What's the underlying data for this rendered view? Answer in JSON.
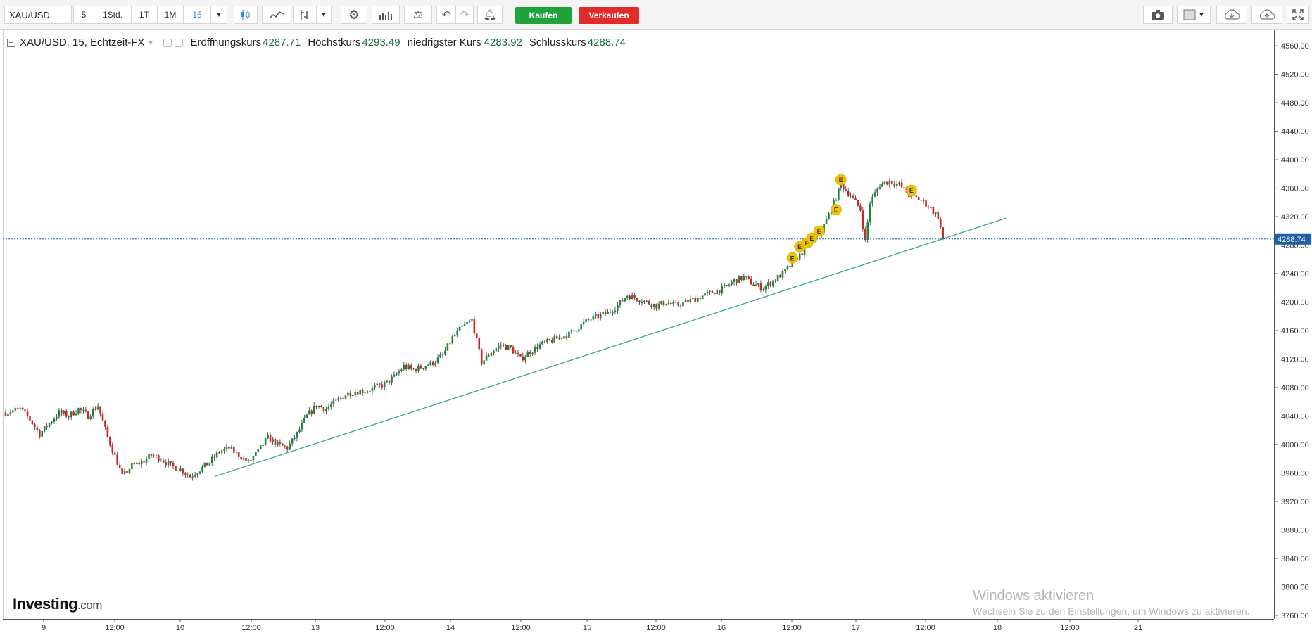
{
  "toolbar": {
    "symbol": "XAU/USD",
    "intervals": [
      {
        "label": "5",
        "active": false
      },
      {
        "label": "1Std.",
        "active": false
      },
      {
        "label": "1T",
        "active": false
      },
      {
        "label": "1M",
        "active": false
      },
      {
        "label": "15",
        "active": true
      }
    ],
    "tool_icons": [
      "candlestick-icon",
      "line-chart-icon",
      "indicator-icon",
      "gear-icon",
      "bar-chart-icon",
      "compare-icon",
      "undo-icon",
      "redo-icon",
      "alert-bell-icon"
    ],
    "buy_label": "Kaufen",
    "sell_label": "Verkaufen",
    "right_icons": [
      "camera-icon",
      "layout-icon",
      "cloud-download-icon",
      "cloud-upload-icon",
      "fullscreen-icon"
    ]
  },
  "legend": {
    "title": "XAU/USD, 15, Echtzeit-FX",
    "open_label": "Eröffnungskurs",
    "open_value": "4287.71",
    "high_label": "Höchstkurs",
    "high_value": "4293.49",
    "low_label": "niedrigster Kurs",
    "low_value": "4283.92",
    "close_label": "Schlusskurs",
    "close_value": "4288.74"
  },
  "chart_data": {
    "type": "candlestick",
    "current_price": 4288.74,
    "current_price_label": "4288.74",
    "y_ticks": [
      "4560.00",
      "4520.00",
      "4480.00",
      "4440.00",
      "4400.00",
      "4360.00",
      "4320.00",
      "4280.00",
      "4240.00",
      "4200.00",
      "4160.00",
      "4120.00",
      "4080.00",
      "4040.00",
      "4000.00",
      "3960.00",
      "3920.00",
      "3880.00",
      "3840.00",
      "3800.00",
      "3760.00"
    ],
    "ylim": [
      3755,
      4575
    ],
    "x_ticks": [
      "9",
      "12:00",
      "10",
      "12:00",
      "13",
      "12:00",
      "14",
      "12:00",
      "15",
      "12:00",
      "16",
      "12:00",
      "17",
      "12:00",
      "18",
      "12:00",
      "21"
    ],
    "close_path": [
      [
        0,
        4045
      ],
      [
        3,
        4050
      ],
      [
        5,
        4035
      ],
      [
        7,
        4015
      ],
      [
        9,
        4030
      ],
      [
        11,
        4045
      ],
      [
        13,
        4040
      ],
      [
        15,
        4050
      ],
      [
        17,
        4040
      ],
      [
        19,
        4055
      ],
      [
        21,
        4010
      ],
      [
        23,
        3975
      ],
      [
        24,
        3955
      ],
      [
        26,
        3970
      ],
      [
        28,
        3975
      ],
      [
        30,
        3985
      ],
      [
        32,
        3980
      ],
      [
        34,
        3970
      ],
      [
        36,
        3965
      ],
      [
        38,
        3955
      ],
      [
        40,
        3965
      ],
      [
        42,
        3975
      ],
      [
        44,
        3990
      ],
      [
        46,
        3995
      ],
      [
        48,
        3985
      ],
      [
        50,
        3975
      ],
      [
        52,
        3990
      ],
      [
        54,
        4010
      ],
      [
        56,
        4000
      ],
      [
        58,
        3995
      ],
      [
        60,
        4015
      ],
      [
        62,
        4040
      ],
      [
        64,
        4055
      ],
      [
        66,
        4050
      ],
      [
        68,
        4060
      ],
      [
        70,
        4070
      ],
      [
        72,
        4075
      ],
      [
        74,
        4075
      ],
      [
        76,
        4080
      ],
      [
        78,
        4085
      ],
      [
        80,
        4095
      ],
      [
        82,
        4110
      ],
      [
        84,
        4105
      ],
      [
        86,
        4110
      ],
      [
        88,
        4115
      ],
      [
        90,
        4125
      ],
      [
        92,
        4150
      ],
      [
        94,
        4165
      ],
      [
        96,
        4175
      ],
      [
        98,
        4115
      ],
      [
        100,
        4130
      ],
      [
        102,
        4140
      ],
      [
        104,
        4135
      ],
      [
        106,
        4120
      ],
      [
        108,
        4130
      ],
      [
        110,
        4140
      ],
      [
        112,
        4145
      ],
      [
        114,
        4150
      ],
      [
        116,
        4155
      ],
      [
        118,
        4165
      ],
      [
        120,
        4175
      ],
      [
        122,
        4180
      ],
      [
        124,
        4185
      ],
      [
        126,
        4195
      ],
      [
        128,
        4210
      ],
      [
        130,
        4205
      ],
      [
        132,
        4200
      ],
      [
        134,
        4195
      ],
      [
        136,
        4200
      ],
      [
        138,
        4195
      ],
      [
        140,
        4200
      ],
      [
        142,
        4205
      ],
      [
        144,
        4210
      ],
      [
        146,
        4215
      ],
      [
        148,
        4220
      ],
      [
        150,
        4230
      ],
      [
        152,
        4235
      ],
      [
        154,
        4225
      ],
      [
        156,
        4220
      ],
      [
        158,
        4230
      ],
      [
        160,
        4240
      ],
      [
        162,
        4255
      ],
      [
        164,
        4270
      ],
      [
        166,
        4285
      ],
      [
        168,
        4300
      ],
      [
        170,
        4330
      ],
      [
        172,
        4365
      ],
      [
        174,
        4350
      ],
      [
        176,
        4330
      ],
      [
        177,
        4285
      ],
      [
        178,
        4340
      ],
      [
        180,
        4365
      ],
      [
        182,
        4370
      ],
      [
        184,
        4365
      ],
      [
        186,
        4350
      ],
      [
        188,
        4345
      ],
      [
        190,
        4335
      ],
      [
        192,
        4320
      ],
      [
        193,
        4288.74
      ]
    ],
    "trendline": {
      "start": [
        43,
        3955
      ],
      "end": [
        206,
        4318
      ]
    },
    "event_markers": [
      {
        "label": "E",
        "x": 162,
        "price": 4262
      },
      {
        "label": "E",
        "x": 163.5,
        "price": 4278
      },
      {
        "label": "E",
        "x": 165,
        "price": 4283
      },
      {
        "label": "E",
        "x": 166,
        "price": 4290
      },
      {
        "label": "E",
        "x": 167.5,
        "price": 4300
      },
      {
        "label": "E",
        "x": 171,
        "price": 4330
      },
      {
        "label": "E",
        "x": 172,
        "price": 4372
      },
      {
        "label": "E",
        "x": 186.5,
        "price": 4357
      }
    ],
    "colors": {
      "up": "#1a8a3a",
      "down": "#d02525",
      "trendline": "#3aa39a",
      "price_line": "#1f5fa8",
      "marker": "#f2c300"
    }
  },
  "watermark": {
    "title": "Windows aktivieren",
    "subtitle": "Wechseln Sie zu den Einstellungen, um Windows zu aktivieren."
  },
  "logo": {
    "main": "Investing",
    "suffix": ".com"
  }
}
